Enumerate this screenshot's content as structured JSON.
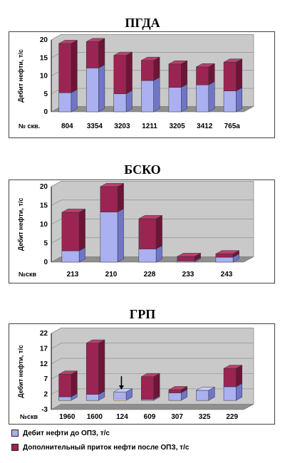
{
  "colors": {
    "before": "#aab0f0",
    "before_side": "#6f76c8",
    "before_top": "#c8ccff",
    "after": "#9b2452",
    "after_side": "#6d1537",
    "after_top": "#b8406e",
    "wall": "#c9c9c9",
    "floor": "#8f8f8f",
    "marker": "#f0e060"
  },
  "chart_data": [
    {
      "type": "bar",
      "stacked": true,
      "title": "ПГДА",
      "ylabel": "Дебит нефти, т/с",
      "xlabel": "№ скв.",
      "ylim": [
        0,
        20
      ],
      "yticks": [
        0,
        5,
        10,
        15,
        20
      ],
      "categories": [
        "804",
        "3354",
        "3203",
        "1211",
        "3205",
        "3412",
        "765a"
      ],
      "series": [
        {
          "name": "Дебит нефти до ОПЗ, т/с",
          "values": [
            5.3,
            12.2,
            5.0,
            8.7,
            6.8,
            7.5,
            5.8
          ]
        },
        {
          "name": "Дополнительный приток нефти после ОПЗ, т/с",
          "values": [
            13.7,
            7.3,
            10.7,
            5.6,
            6.5,
            5.0,
            8.0
          ]
        }
      ]
    },
    {
      "type": "bar",
      "stacked": true,
      "title": "БСКО",
      "ylabel": "Дебит нефти, т/с",
      "xlabel": "№скв",
      "ylim": [
        0,
        20
      ],
      "yticks": [
        0,
        5,
        10,
        15,
        20
      ],
      "categories": [
        "213",
        "210",
        "228",
        "233",
        "243"
      ],
      "series": [
        {
          "name": "Дебит нефти до ОПЗ, т/с",
          "values": [
            3.0,
            13.3,
            3.5,
            0.3,
            1.3
          ]
        },
        {
          "name": "Дополнительный приток нефти после ОПЗ, т/с",
          "values": [
            10.2,
            6.7,
            8.0,
            1.2,
            0.9
          ]
        }
      ]
    },
    {
      "type": "bar",
      "stacked": true,
      "title": "ГРП",
      "ylabel": "Дебит нефти, т/с",
      "xlabel": "№скв",
      "ylim": [
        -3,
        22
      ],
      "yticks": [
        -3,
        2,
        7,
        12,
        17,
        22
      ],
      "categories": [
        "1960",
        "1600",
        "124",
        "609",
        "307",
        "325",
        "229"
      ],
      "series": [
        {
          "name": "Дебит нефти до ОПЗ, т/с",
          "values": [
            1.2,
            2.0,
            2.8,
            0.4,
            2.5,
            3.3,
            4.5
          ]
        },
        {
          "name": "Дополнительный приток нефти после ОПЗ, т/с",
          "values": [
            7.4,
            16.8,
            0.0,
            7.4,
            1.0,
            0.0,
            6.0
          ]
        }
      ],
      "annotation": "arrow over 124"
    }
  ],
  "legend": [
    "Дебит нефти до ОПЗ, т/с",
    "Дополнительный приток нефти после ОПЗ, т/с"
  ]
}
